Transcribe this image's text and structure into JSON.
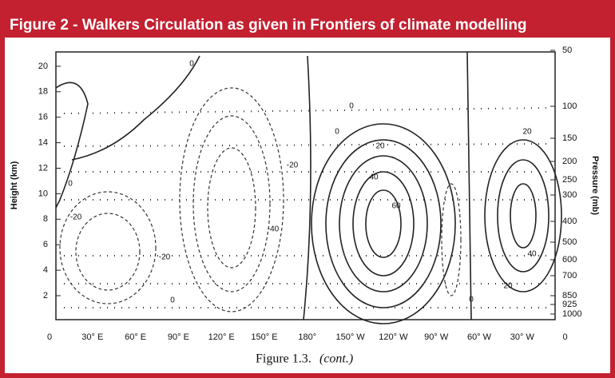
{
  "header": {
    "title": "Figure 2 - Walkers Circulation as given in Frontiers of climate modelling"
  },
  "figure": {
    "y_label": "Height (km)",
    "y2_label": "Pressure (mb)",
    "left_ticks": [
      "2",
      "4",
      "6",
      "8",
      "10",
      "12",
      "14",
      "16",
      "18",
      "20"
    ],
    "right_ticks": [
      "50",
      "100",
      "150",
      "200",
      "250",
      "300",
      "400",
      "500",
      "600",
      "700",
      "850",
      "925",
      "1000"
    ],
    "bottom_ticks": [
      "0",
      "30° E",
      "60° E",
      "90° E",
      "120° E",
      "150° E",
      "180°",
      "150° W",
      "120° W",
      "90° W",
      "60° W",
      "30° W",
      "0"
    ],
    "contour_labels": [
      "0",
      "0",
      "0",
      "20",
      "40",
      "60",
      "20",
      "40",
      "20",
      "-20",
      "-40",
      "-20",
      "-20",
      "0",
      "0",
      "0"
    ],
    "caption": "Figure 1.3.",
    "caption_note": "(cont.)"
  }
}
